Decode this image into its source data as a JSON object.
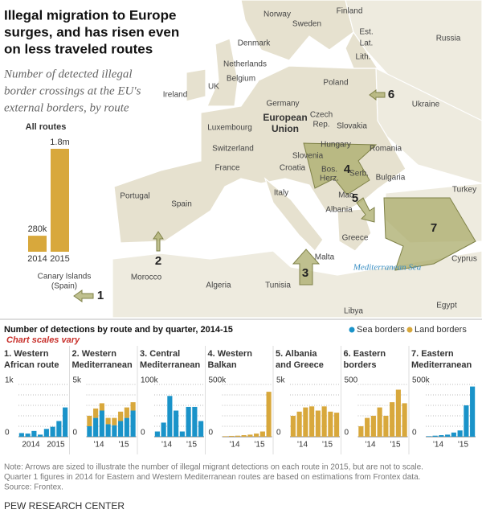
{
  "title": [
    "Illegal migration to Europe",
    "surges, and has risen even",
    "on less traveled routes"
  ],
  "subtitle": [
    "Number of detected illegal",
    "border crossings at the EU's",
    "external borders, by route"
  ],
  "map": {
    "labels": [
      "Norway",
      "Sweden",
      "Finland",
      "Est.",
      "Lat.",
      "Lith.",
      "Russia",
      "Denmark",
      "Netherlands",
      "Belgium",
      "UK",
      "Ireland",
      "Germany",
      "Poland",
      "Ukraine",
      "Czech",
      "Rep.",
      "Slovakia",
      "Luxembourg",
      "European",
      "Union",
      "Hungary",
      "Romania",
      "Switzerland",
      "France",
      "Slovenia",
      "Croatia",
      "Bos.",
      "Herz.",
      "Serb.",
      "Bulgaria",
      "Portugal",
      "Spain",
      "Italy",
      "Mac.",
      "Albania",
      "Turkey",
      "Greece",
      "Malta",
      "Cyprus",
      "Morocco",
      "Algeria",
      "Tunisia",
      "Libya",
      "Egypt",
      "Mediterranean Sea",
      "Canary Islands",
      "(Spain)"
    ],
    "arrows": [
      "1",
      "2",
      "3",
      "4",
      "5",
      "6",
      "7"
    ]
  },
  "section_title": "Number of detections by route and by quarter, 2014-15",
  "scale_note": "Chart scales vary",
  "legend": [
    {
      "name": "Sea borders",
      "color": "#1a93c9"
    },
    {
      "name": "Land borders",
      "color": "#d8a83c"
    }
  ],
  "chart_data": [
    {
      "type": "bar",
      "title": "All routes",
      "categories": [
        "2014",
        "2015"
      ],
      "values": [
        280000,
        1800000
      ],
      "value_labels": [
        "280k",
        "1.8m"
      ],
      "color": "#d8a83c"
    },
    {
      "type": "quarterly",
      "title": [
        "1. Western",
        "African route"
      ],
      "year_labels": [
        "2014",
        "2015"
      ],
      "ylim": [
        0,
        1000
      ],
      "yticks": [
        0,
        {
          "value": 1000,
          "label": "1k"
        }
      ],
      "minor_yticks": [
        200,
        400,
        600,
        800
      ],
      "series": [
        {
          "legend_index": 0,
          "values": [
            70,
            60,
            110,
            40,
            150,
            190,
            300,
            560
          ]
        }
      ]
    },
    {
      "type": "quarterly",
      "title": [
        "2. Western",
        "Mediterranean"
      ],
      "year_labels": [
        "'14",
        "'15"
      ],
      "ylim": [
        0,
        5000
      ],
      "yticks": [
        0,
        {
          "value": 5000,
          "label": "5k"
        }
      ],
      "minor_yticks": [
        1000,
        2000,
        3000,
        4000
      ],
      "series": [
        {
          "legend_index": 0,
          "values": [
            1000,
            1800,
            2500,
            1200,
            1100,
            1500,
            1800,
            2500
          ]
        },
        {
          "legend_index": 1,
          "values": [
            1000,
            900,
            700,
            600,
            700,
            900,
            1000,
            800
          ]
        }
      ]
    },
    {
      "type": "quarterly",
      "title": [
        "3. Central",
        "Mediterranean"
      ],
      "year_labels": [
        "'14",
        "'15"
      ],
      "ylim": [
        0,
        100000
      ],
      "yticks": [
        0,
        {
          "value": 100000,
          "label": "100k"
        }
      ],
      "minor_yticks": [
        20000,
        40000,
        60000,
        80000
      ],
      "series": [
        {
          "legend_index": 0,
          "values": [
            10000,
            27000,
            78000,
            50000,
            10000,
            57000,
            57000,
            30000
          ]
        }
      ]
    },
    {
      "type": "quarterly",
      "title": [
        "4. Western",
        "Balkan"
      ],
      "year_labels": [
        "'14",
        "'15"
      ],
      "ylim": [
        0,
        500000
      ],
      "yticks": [
        0,
        {
          "value": 500000,
          "label": "500k"
        }
      ],
      "minor_yticks": [
        100000,
        200000,
        300000,
        400000
      ],
      "series": [
        {
          "legend_index": 1,
          "values": [
            5000,
            8000,
            10000,
            15000,
            20000,
            30000,
            50000,
            430000
          ]
        }
      ]
    },
    {
      "type": "quarterly",
      "title": [
        "5. Albania",
        "and Greece"
      ],
      "year_labels": [
        "'14",
        "'15"
      ],
      "ylim": [
        0,
        5000
      ],
      "yticks": [
        0,
        {
          "value": 5000,
          "label": "5k"
        }
      ],
      "minor_yticks": [
        1000,
        2000,
        3000,
        4000
      ],
      "series": [
        {
          "legend_index": 1,
          "values": [
            2000,
            2400,
            2800,
            2900,
            2500,
            2900,
            2400,
            2300
          ]
        }
      ]
    },
    {
      "type": "quarterly",
      "title": [
        "6. Eastern",
        "borders"
      ],
      "year_labels": [
        "'14",
        "'15"
      ],
      "ylim": [
        0,
        500
      ],
      "yticks": [
        0,
        500
      ],
      "minor_yticks": [
        100,
        200,
        300,
        400
      ],
      "series": [
        {
          "legend_index": 1,
          "values": [
            100,
            180,
            200,
            280,
            200,
            330,
            450,
            320
          ]
        }
      ]
    },
    {
      "type": "quarterly",
      "title": [
        "7. Eastern",
        "Mediterranean"
      ],
      "year_labels": [
        "'14",
        "'15"
      ],
      "ylim": [
        0,
        500000
      ],
      "yticks": [
        0,
        {
          "value": 500000,
          "label": "500k"
        }
      ],
      "minor_yticks": [
        100000,
        200000,
        300000,
        400000
      ],
      "series": [
        {
          "legend_index": 0,
          "values": [
            5000,
            10000,
            15000,
            20000,
            40000,
            60000,
            300000,
            480000
          ]
        }
      ]
    }
  ],
  "note": [
    "Note: Arrows are sized to illustrate the number of illegal migrant detections on each route in 2015, but are not to scale.",
    "Quarter 1 figures in 2014 for Eastern and Western Mediterranean routes are based on estimations from Frontex data.",
    "Source: Frontex."
  ],
  "footer": "PEW RESEARCH CENTER"
}
